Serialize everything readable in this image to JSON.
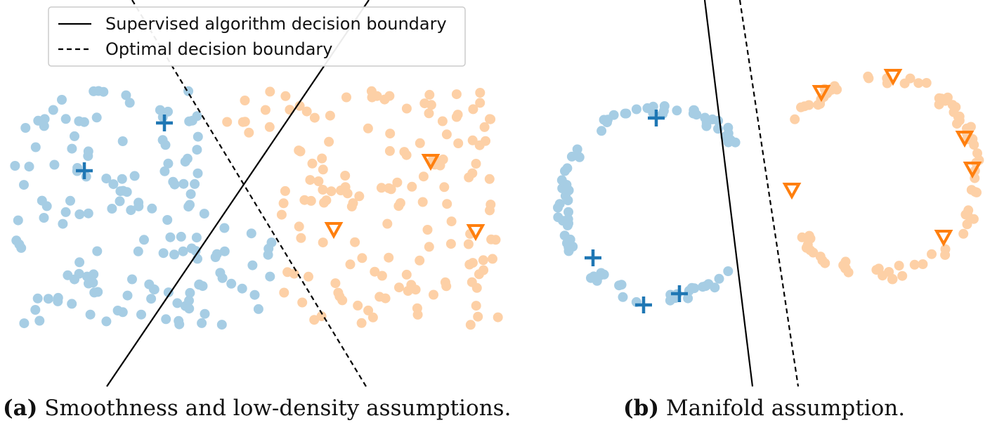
{
  "legend": {
    "solid_label": "Supervised algorithm decision boundary",
    "dashed_label": "Optimal decision boundary"
  },
  "captions": {
    "a": {
      "tag": "(a)",
      "text": " Smoothness and low-density assumptions."
    },
    "b": {
      "tag": "(b)",
      "text": " Manifold assumption."
    }
  },
  "colors": {
    "class_a_unlabeled": "#a6cde4",
    "class_b_unlabeled": "#fdd0a6",
    "class_a_labeled": "#1f77b4",
    "class_b_labeled": "#ff7f0e",
    "boundary": "#000000"
  },
  "markers": {
    "class_a_labeled": "plus",
    "class_b_labeled": "triangle-down"
  }
}
